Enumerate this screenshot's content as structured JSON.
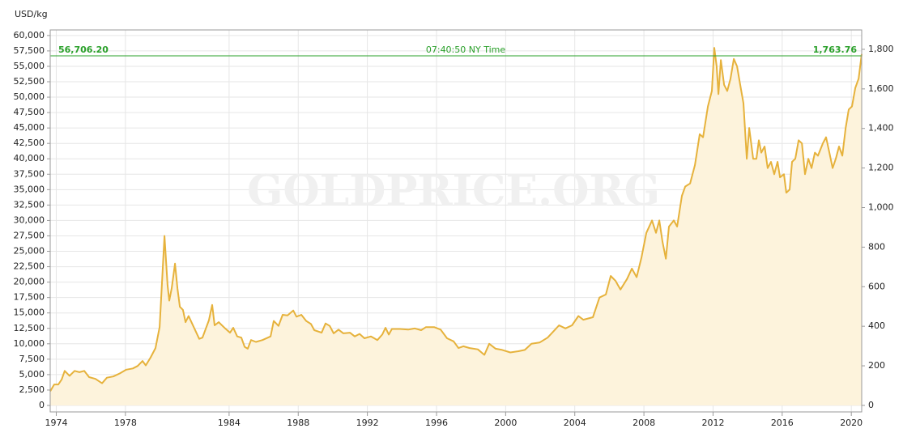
{
  "chart_data": {
    "type": "area",
    "y_label": "USD/kg",
    "watermark": "GOLDPRICE.ORG",
    "time_label": "07:40:50 NY Time",
    "current_price": {
      "value": 56706.2,
      "label": "56,706.20"
    },
    "current_price_oz": {
      "value": 1763.76,
      "label": "1,763.76"
    },
    "line_color": "#e6b23c",
    "fill_color": "#fdf3dc",
    "price_line_color": "#2aa02a",
    "grid": true,
    "xlim": [
      1973.65,
      2020.6
    ],
    "xticks": [
      1974,
      1978,
      1984,
      1988,
      1992,
      1996,
      2000,
      2004,
      2008,
      2012,
      2016,
      2020
    ],
    "ylim": [
      -1050,
      60900
    ],
    "yticks": [
      0,
      {
        "value": 2500,
        "label": "2,500"
      },
      {
        "value": 5000,
        "label": "5,000"
      },
      {
        "value": 7500,
        "label": "7,500"
      },
      {
        "value": 10000,
        "label": "10,000"
      },
      {
        "value": 12500,
        "label": "12,500"
      },
      {
        "value": 15000,
        "label": "15,000"
      },
      {
        "value": 17500,
        "label": "17,500"
      },
      {
        "value": 20000,
        "label": "20,000"
      },
      {
        "value": 22500,
        "label": "22,500"
      },
      {
        "value": 25000,
        "label": "25,000"
      },
      {
        "value": 27500,
        "label": "27,500"
      },
      {
        "value": 30000,
        "label": "30,000"
      },
      {
        "value": 32500,
        "label": "32,500"
      },
      {
        "value": 35000,
        "label": "35,000"
      },
      {
        "value": 37500,
        "label": "37,500"
      },
      {
        "value": 40000,
        "label": "40,000"
      },
      {
        "value": 42500,
        "label": "42,500"
      },
      {
        "value": 45000,
        "label": "45,000"
      },
      {
        "value": 47500,
        "label": "47,500"
      },
      {
        "value": 50000,
        "label": "50,000"
      },
      {
        "value": 52500,
        "label": "52,500"
      },
      {
        "value": 55000,
        "label": "55,000"
      },
      {
        "value": 57500,
        "label": "57,500"
      },
      {
        "value": 60000,
        "label": "60,000"
      }
    ],
    "y2lim": [
      -33,
      1898
    ],
    "y2ticks": [
      0,
      200,
      400,
      600,
      800,
      {
        "value": 1000,
        "label": "1,000"
      },
      {
        "value": 1200,
        "label": "1,200"
      },
      {
        "value": 1400,
        "label": "1,400"
      },
      {
        "value": 1600,
        "label": "1,600"
      },
      {
        "value": 1800,
        "label": "1,800"
      }
    ],
    "x": [
      1973.65,
      1973.88,
      1974.12,
      1974.31,
      1974.49,
      1974.77,
      1975.06,
      1975.34,
      1975.62,
      1975.9,
      1976.27,
      1976.65,
      1976.93,
      1977.3,
      1977.68,
      1978.05,
      1978.43,
      1978.71,
      1978.99,
      1979.18,
      1979.46,
      1979.74,
      1979.98,
      1980.26,
      1980.44,
      1980.54,
      1980.68,
      1980.87,
      1981.01,
      1981.15,
      1981.33,
      1981.48,
      1981.66,
      1981.99,
      1982.27,
      1982.46,
      1982.83,
      1983.02,
      1983.16,
      1983.4,
      1983.77,
      1984.05,
      1984.24,
      1984.47,
      1984.71,
      1984.9,
      1985.08,
      1985.27,
      1985.55,
      1985.93,
      1986.4,
      1986.58,
      1986.86,
      1987.1,
      1987.38,
      1987.71,
      1987.9,
      1988.18,
      1988.46,
      1988.74,
      1988.93,
      1989.35,
      1989.58,
      1989.82,
      1990.05,
      1990.33,
      1990.61,
      1990.99,
      1991.27,
      1991.55,
      1991.83,
      1992.21,
      1992.58,
      1992.86,
      1993.05,
      1993.24,
      1993.42,
      1993.89,
      1994.36,
      1994.74,
      1995.11,
      1995.39,
      1995.86,
      1996.24,
      1996.61,
      1996.99,
      1997.27,
      1997.55,
      1997.92,
      1998.39,
      1998.77,
      1999.05,
      1999.42,
      1999.8,
      2000.27,
      2000.74,
      2001.11,
      2001.49,
      2001.96,
      2002.43,
      2002.76,
      2003.09,
      2003.46,
      2003.84,
      2004.21,
      2004.49,
      2005.05,
      2005.43,
      2005.8,
      2006.08,
      2006.36,
      2006.64,
      2007.02,
      2007.3,
      2007.58,
      2007.86,
      2008.14,
      2008.47,
      2008.7,
      2008.89,
      2009.08,
      2009.27,
      2009.45,
      2009.73,
      2009.92,
      2010.2,
      2010.39,
      2010.67,
      2010.95,
      2011.23,
      2011.42,
      2011.7,
      2011.93,
      2012.07,
      2012.21,
      2012.31,
      2012.45,
      2012.64,
      2012.82,
      2013.01,
      2013.2,
      2013.39,
      2013.57,
      2013.76,
      2013.95,
      2014.09,
      2014.32,
      2014.51,
      2014.65,
      2014.79,
      2014.98,
      2015.16,
      2015.35,
      2015.54,
      2015.73,
      2015.87,
      2016.1,
      2016.24,
      2016.43,
      2016.57,
      2016.76,
      2016.95,
      2017.14,
      2017.32,
      2017.51,
      2017.7,
      2017.89,
      2018.07,
      2018.35,
      2018.54,
      2018.73,
      2018.92,
      2019.1,
      2019.29,
      2019.48,
      2019.67,
      2019.85,
      2020.04,
      2020.23,
      2020.42,
      2020.6
    ],
    "values": [
      2300,
      3400,
      3400,
      4200,
      5600,
      4800,
      5600,
      5400,
      5600,
      4600,
      4300,
      3600,
      4500,
      4700,
      5200,
      5800,
      6000,
      6400,
      7200,
      6500,
      7800,
      9300,
      12700,
      27500,
      19500,
      17000,
      19000,
      23000,
      19000,
      16000,
      15500,
      13500,
      14500,
      12500,
      10800,
      11000,
      13800,
      16300,
      13000,
      13500,
      12500,
      11800,
      12600,
      11200,
      11000,
      9500,
      9200,
      10600,
      10300,
      10600,
      11200,
      13700,
      12900,
      14700,
      14600,
      15400,
      14400,
      14700,
      13700,
      13200,
      12200,
      11800,
      13300,
      12900,
      11700,
      12300,
      11700,
      11800,
      11200,
      11600,
      10900,
      11200,
      10600,
      11500,
      12600,
      11500,
      12400,
      12400,
      12300,
      12500,
      12200,
      12700,
      12700,
      12300,
      10900,
      10400,
      9300,
      9600,
      9300,
      9100,
      8200,
      10000,
      9200,
      9000,
      8600,
      8800,
      9000,
      10000,
      10200,
      11000,
      12000,
      13000,
      12500,
      13000,
      14500,
      13900,
      14300,
      17500,
      18000,
      21000,
      20200,
      18800,
      20500,
      22200,
      20800,
      24000,
      28000,
      30000,
      28000,
      30000,
      26500,
      23800,
      29000,
      30000,
      29000,
      34000,
      35500,
      36000,
      39000,
      44000,
      43500,
      48500,
      51000,
      58000,
      55000,
      50500,
      56000,
      52000,
      51000,
      53000,
      56200,
      55000,
      52000,
      49000,
      40000,
      45000,
      40000,
      40000,
      43000,
      41000,
      42000,
      38500,
      39500,
      37500,
      39500,
      37000,
      37500,
      34500,
      35000,
      39500,
      40000,
      43000,
      42500,
      37500,
      40000,
      38500,
      41000,
      40500,
      42500,
      43500,
      41000,
      38500,
      40000,
      42000,
      40500,
      45000,
      48000,
      48500,
      51500,
      53000,
      57000
    ]
  }
}
